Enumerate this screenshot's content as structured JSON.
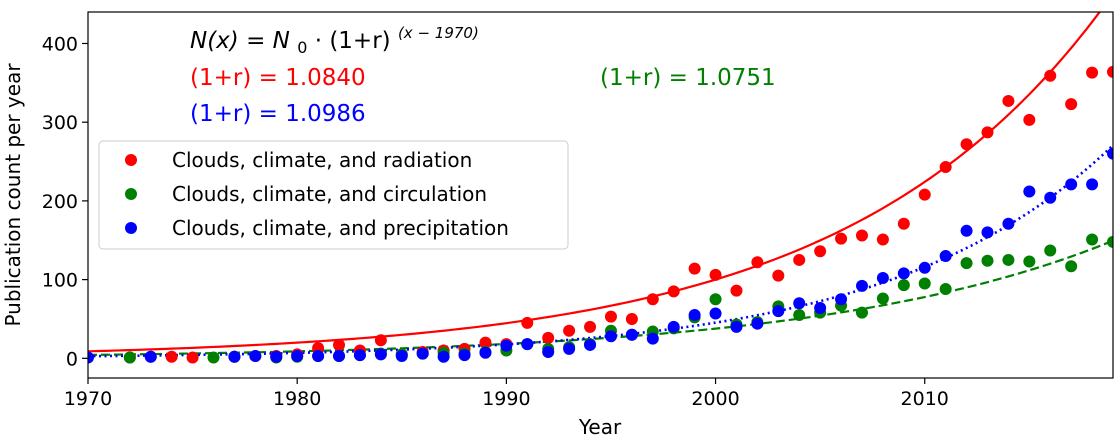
{
  "chart_data": {
    "type": "scatter",
    "xlabel": "Year",
    "ylabel": "Publication count per year",
    "xlim": [
      1970,
      2019
    ],
    "ylim": [
      -25,
      440
    ],
    "xticks": [
      1970,
      1980,
      1990,
      2000,
      2010
    ],
    "yticks": [
      0,
      100,
      200,
      300,
      400
    ],
    "legend_position": "middle-left",
    "formula": {
      "lhs": "N(x)",
      "eq": " = ",
      "n0": "N",
      "n0_sub": "0",
      "mid": " · (1+r)",
      "exp": "(x − 1970)"
    },
    "annotations": [
      {
        "text": "(1+r) = 1.0840",
        "color": "#ff0000"
      },
      {
        "text": "(1+r) = 1.0986",
        "color": "#0000ff"
      },
      {
        "text": "(1+r) = 1.0751",
        "color": "#008000"
      }
    ],
    "series": [
      {
        "name": "Clouds, climate, and radiation",
        "color": "#ff0000",
        "line_style": "solid",
        "fit": {
          "base": 1.084,
          "n0": 8.9
        },
        "points": [
          [
            1972,
            1
          ],
          [
            1973,
            2
          ],
          [
            1974,
            2
          ],
          [
            1975,
            1
          ],
          [
            1977,
            2
          ],
          [
            1978,
            3
          ],
          [
            1979,
            3
          ],
          [
            1980,
            5
          ],
          [
            1981,
            13
          ],
          [
            1982,
            17
          ],
          [
            1983,
            10
          ],
          [
            1984,
            23
          ],
          [
            1985,
            5
          ],
          [
            1986,
            8
          ],
          [
            1987,
            10
          ],
          [
            1988,
            12
          ],
          [
            1989,
            20
          ],
          [
            1990,
            18
          ],
          [
            1991,
            45
          ],
          [
            1992,
            26
          ],
          [
            1993,
            35
          ],
          [
            1994,
            40
          ],
          [
            1995,
            53
          ],
          [
            1996,
            50
          ],
          [
            1997,
            75
          ],
          [
            1998,
            85
          ],
          [
            1999,
            114
          ],
          [
            2000,
            106
          ],
          [
            2001,
            86
          ],
          [
            2002,
            122
          ],
          [
            2003,
            105
          ],
          [
            2004,
            125
          ],
          [
            2005,
            136
          ],
          [
            2006,
            152
          ],
          [
            2007,
            156
          ],
          [
            2008,
            151
          ],
          [
            2009,
            171
          ],
          [
            2010,
            208
          ],
          [
            2011,
            243
          ],
          [
            2012,
            272
          ],
          [
            2013,
            287
          ],
          [
            2014,
            327
          ],
          [
            2015,
            303
          ],
          [
            2016,
            359
          ],
          [
            2017,
            323
          ],
          [
            2018,
            363
          ],
          [
            2019,
            364
          ]
        ]
      },
      {
        "name": "Clouds, climate, and circulation",
        "color": "#008000",
        "line_style": "dashed",
        "fit": {
          "base": 1.0751,
          "n0": 4.3
        },
        "points": [
          [
            1972,
            1
          ],
          [
            1976,
            1
          ],
          [
            1977,
            2
          ],
          [
            1979,
            1
          ],
          [
            1980,
            2
          ],
          [
            1981,
            3
          ],
          [
            1982,
            3
          ],
          [
            1983,
            4
          ],
          [
            1984,
            6
          ],
          [
            1985,
            5
          ],
          [
            1986,
            6
          ],
          [
            1987,
            7
          ],
          [
            1988,
            6
          ],
          [
            1989,
            8
          ],
          [
            1990,
            10
          ],
          [
            1991,
            18
          ],
          [
            1992,
            12
          ],
          [
            1993,
            14
          ],
          [
            1994,
            18
          ],
          [
            1995,
            35
          ],
          [
            1996,
            30
          ],
          [
            1997,
            34
          ],
          [
            1998,
            38
          ],
          [
            1999,
            52
          ],
          [
            2000,
            75
          ],
          [
            2001,
            43
          ],
          [
            2002,
            46
          ],
          [
            2003,
            66
          ],
          [
            2004,
            55
          ],
          [
            2005,
            58
          ],
          [
            2006,
            67
          ],
          [
            2007,
            58
          ],
          [
            2008,
            76
          ],
          [
            2009,
            93
          ],
          [
            2010,
            95
          ],
          [
            2011,
            88
          ],
          [
            2012,
            121
          ],
          [
            2013,
            124
          ],
          [
            2014,
            125
          ],
          [
            2015,
            123
          ],
          [
            2016,
            137
          ],
          [
            2017,
            117
          ],
          [
            2018,
            151
          ],
          [
            2019,
            148
          ]
        ]
      },
      {
        "name": "Clouds, climate, and precipitation",
        "color": "#0000ff",
        "line_style": "dotted",
        "fit": {
          "base": 1.0986,
          "n0": 2.7
        },
        "points": [
          [
            1970,
            1
          ],
          [
            1973,
            2
          ],
          [
            1977,
            2
          ],
          [
            1978,
            3
          ],
          [
            1979,
            2
          ],
          [
            1980,
            3
          ],
          [
            1981,
            3
          ],
          [
            1982,
            3
          ],
          [
            1983,
            4
          ],
          [
            1984,
            5
          ],
          [
            1985,
            3
          ],
          [
            1986,
            6
          ],
          [
            1987,
            2
          ],
          [
            1988,
            4
          ],
          [
            1989,
            7
          ],
          [
            1990,
            16
          ],
          [
            1991,
            18
          ],
          [
            1992,
            8
          ],
          [
            1993,
            12
          ],
          [
            1994,
            17
          ],
          [
            1995,
            28
          ],
          [
            1996,
            30
          ],
          [
            1997,
            25
          ],
          [
            1998,
            40
          ],
          [
            1999,
            55
          ],
          [
            2000,
            57
          ],
          [
            2001,
            40
          ],
          [
            2002,
            44
          ],
          [
            2003,
            60
          ],
          [
            2004,
            70
          ],
          [
            2005,
            64
          ],
          [
            2006,
            75
          ],
          [
            2007,
            92
          ],
          [
            2008,
            102
          ],
          [
            2009,
            108
          ],
          [
            2010,
            115
          ],
          [
            2011,
            130
          ],
          [
            2012,
            162
          ],
          [
            2013,
            160
          ],
          [
            2014,
            171
          ],
          [
            2015,
            212
          ],
          [
            2016,
            204
          ],
          [
            2017,
            221
          ],
          [
            2018,
            221
          ],
          [
            2019,
            260
          ]
        ]
      }
    ]
  }
}
